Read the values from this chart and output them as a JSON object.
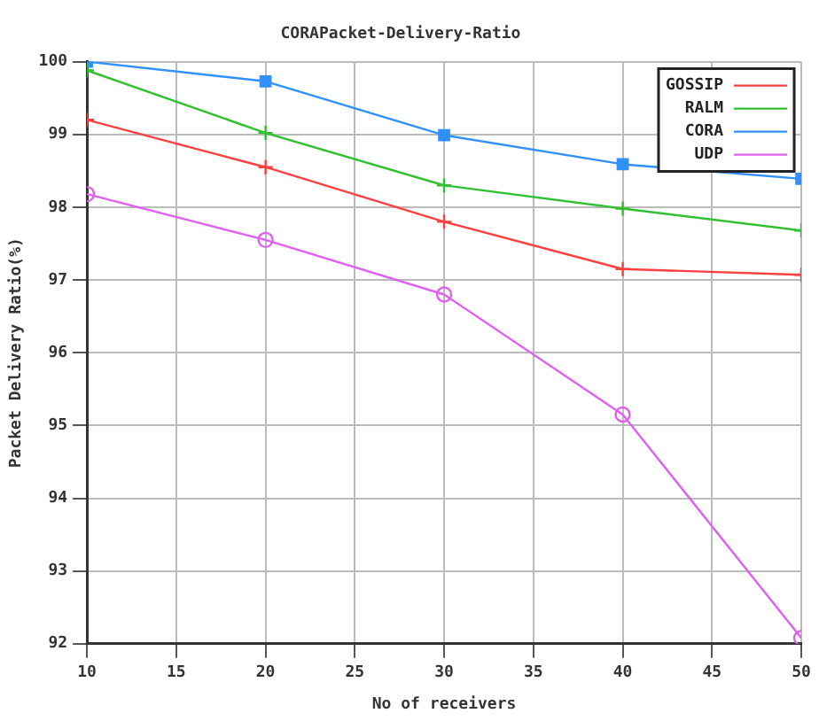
{
  "chart_data": {
    "type": "line",
    "title": "CORAPacket-Delivery-Ratio",
    "xlabel": "No of receivers",
    "ylabel": "Packet Delivery Ratio(%)",
    "x": [
      10,
      20,
      30,
      40,
      50
    ],
    "series": [
      {
        "name": "GOSSIP",
        "color": "#ff4040",
        "marker": "cross",
        "values": [
          99.2,
          98.55,
          97.8,
          97.15,
          97.07
        ]
      },
      {
        "name": "RALM",
        "color": "#30c030",
        "marker": "cross",
        "values": [
          99.88,
          99.02,
          98.3,
          97.98,
          97.68
        ]
      },
      {
        "name": "CORA",
        "color": "#3090ff",
        "marker": "square",
        "values": [
          100,
          99.73,
          98.99,
          98.59,
          98.39
        ]
      },
      {
        "name": "UDP",
        "color": "#e060f0",
        "marker": "circle",
        "values": [
          98.18,
          97.55,
          96.8,
          95.15,
          92.08
        ]
      }
    ],
    "xlim": [
      10,
      50
    ],
    "xticks": [
      10,
      15,
      20,
      25,
      30,
      35,
      40,
      45,
      50
    ],
    "ylim": [
      92,
      100
    ],
    "yticks": [
      92,
      93,
      94,
      95,
      96,
      97,
      98,
      99,
      100
    ],
    "grid": true,
    "legend": "top right",
    "line_style": "solid"
  }
}
